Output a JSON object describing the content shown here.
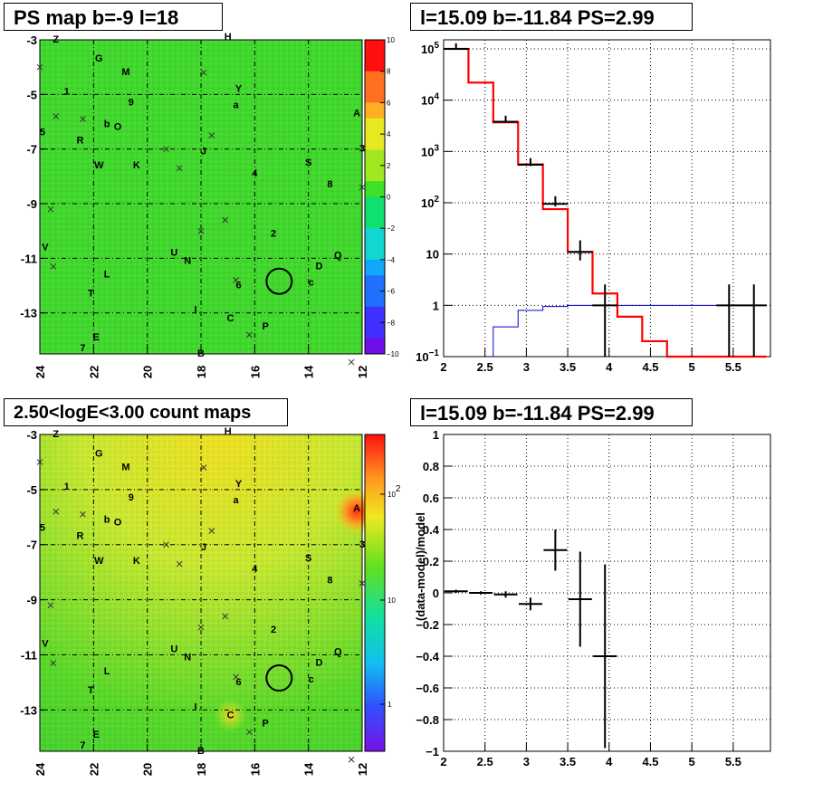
{
  "panels": {
    "ps_map_title": "PS map b=-9 l=18",
    "spectrum_title": "l=15.09 b=-11.84 PS=2.99",
    "count_map_title": "2.50<logE<3.00 count maps",
    "residual_title": "l=15.09 b=-11.84 PS=2.99"
  },
  "colors": {
    "map_green": "#3cdc28",
    "map_yellow": "#d8e828",
    "data": "#000000",
    "model_total": "#ff0000",
    "model_bg": "#0000cc"
  },
  "chart_data": [
    {
      "type": "heatmap",
      "name": "ps_map",
      "xlim": [
        24,
        12
      ],
      "ylim": [
        -14.5,
        -3
      ],
      "x_ticks": [
        24,
        22,
        20,
        18,
        16,
        14,
        12
      ],
      "y_ticks": [
        -3,
        -5,
        -7,
        -9,
        -11,
        -13
      ],
      "x_tick_labels": [
        "24",
        "22",
        "20",
        "18",
        "16",
        "14",
        "12"
      ],
      "y_tick_labels": [
        "-3",
        "-5",
        "-7",
        "-9",
        "-11",
        "-13"
      ],
      "colorbar": {
        "range": [
          -10,
          10
        ],
        "ticks": [
          10,
          8,
          6,
          4,
          2,
          0,
          -2,
          -4,
          -6,
          -8,
          -10
        ],
        "tick_labels": [
          "10",
          "8",
          "6",
          "4",
          "2",
          "0",
          "−2",
          "−4",
          "−6",
          "−8",
          "−10"
        ]
      },
      "circle": {
        "l": 15.09,
        "b": -11.84
      }
    },
    {
      "type": "line",
      "name": "spectrum",
      "log_y": true,
      "xlim": [
        2,
        5.95
      ],
      "ylim": [
        0.1,
        150000
      ],
      "x_ticks": [
        2,
        2.5,
        3,
        3.5,
        4,
        4.5,
        5,
        5.5
      ],
      "x_tick_labels": [
        "2",
        "2.5",
        "3",
        "3.5",
        "4",
        "4.5",
        "5",
        "5.5"
      ],
      "y_ticks": [
        0.1,
        1,
        10,
        100,
        1000,
        10000,
        100000
      ],
      "y_tick_labels": [
        {
          "base": "10",
          "exp": "−1"
        },
        {
          "base": "1",
          "exp": ""
        },
        {
          "base": "10",
          "exp": ""
        },
        {
          "base": "10",
          "exp": "2"
        },
        {
          "base": "10",
          "exp": "3"
        },
        {
          "base": "10",
          "exp": "4"
        },
        {
          "base": "10",
          "exp": "5"
        }
      ],
      "bin_edges": [
        2.0,
        2.3,
        2.6,
        2.9,
        3.2,
        3.5,
        3.8,
        4.1,
        4.4,
        4.7,
        5.0,
        5.3,
        5.6,
        5.9
      ],
      "model_total": [
        100000,
        22000,
        3700,
        560,
        75,
        11,
        1.7,
        0.6,
        0.2,
        0.1,
        0.1,
        0.1,
        0.1
      ],
      "model_background": [
        0,
        0,
        0.38,
        0.8,
        0.95,
        1.0,
        1.0,
        1.0,
        1.0,
        1.0,
        1.0,
        1.0,
        1.0
      ],
      "data_points": [
        {
          "x": 2.15,
          "y": 100000,
          "lo": 99000,
          "hi": 101000
        },
        {
          "x": 2.75,
          "y": 3800,
          "lo": 3700,
          "hi": 3900
        },
        {
          "x": 3.05,
          "y": 550,
          "lo": 520,
          "hi": 580
        },
        {
          "x": 3.35,
          "y": 95,
          "lo": 85,
          "hi": 105
        },
        {
          "x": 3.65,
          "y": 11,
          "lo": 7.5,
          "hi": 14.5
        },
        {
          "x": 3.95,
          "y": 1,
          "lo": 0.1,
          "hi": 2
        },
        {
          "x": 5.45,
          "y": 1,
          "lo": 0.1,
          "hi": 2
        },
        {
          "x": 5.75,
          "y": 1,
          "lo": 0.1,
          "hi": 2
        }
      ]
    },
    {
      "type": "heatmap",
      "name": "count_map",
      "xlim": [
        24,
        12
      ],
      "ylim": [
        -14.5,
        -3
      ],
      "x_ticks": [
        24,
        22,
        20,
        18,
        16,
        14,
        12
      ],
      "y_ticks": [
        -3,
        -5,
        -7,
        -9,
        -11,
        -13
      ],
      "x_tick_labels": [
        "24",
        "22",
        "20",
        "18",
        "16",
        "14",
        "12"
      ],
      "y_tick_labels": [
        "-3",
        "-5",
        "-7",
        "-9",
        "-11",
        "-13"
      ],
      "colorbar": {
        "log": true,
        "tick_labels": [
          {
            "base": "10",
            "exp": "2"
          },
          {
            "base": "10",
            "exp": ""
          },
          {
            "base": "1",
            "exp": ""
          }
        ]
      },
      "circle": {
        "l": 15.09,
        "b": -11.84
      }
    },
    {
      "type": "scatter",
      "name": "residual",
      "ylabel": "(data-model)/model",
      "xlim": [
        2,
        5.95
      ],
      "ylim": [
        -1,
        1
      ],
      "x_ticks": [
        2,
        2.5,
        3,
        3.5,
        4,
        4.5,
        5,
        5.5
      ],
      "x_tick_labels": [
        "2",
        "2.5",
        "3",
        "3.5",
        "4",
        "4.5",
        "5",
        "5.5"
      ],
      "y_ticks": [
        1,
        0.8,
        0.6,
        0.4,
        0.2,
        0,
        -0.2,
        -0.4,
        -0.6,
        -0.8,
        -1
      ],
      "y_tick_labels": [
        "1",
        "0.8",
        "0.6",
        "0.4",
        "0.2",
        "0",
        "−0.2",
        "−0.4",
        "−0.6",
        "−0.8",
        "−1"
      ],
      "points": [
        {
          "x": 2.15,
          "y": 0.01,
          "err": 0.01
        },
        {
          "x": 2.45,
          "y": 0.0,
          "err": 0.01
        },
        {
          "x": 2.75,
          "y": -0.01,
          "err": 0.02
        },
        {
          "x": 3.05,
          "y": -0.07,
          "err": 0.04
        },
        {
          "x": 3.35,
          "y": 0.27,
          "err": 0.13
        },
        {
          "x": 3.65,
          "y": -0.04,
          "err": 0.3
        },
        {
          "x": 3.95,
          "y": -0.4,
          "err": 0.58
        }
      ]
    }
  ],
  "source_markers": [
    {
      "l": 23.4,
      "b": -3.1,
      "t": "Z"
    },
    {
      "l": 21.8,
      "b": -3.8,
      "t": "G"
    },
    {
      "l": 17.0,
      "b": -3.0,
      "t": "H"
    },
    {
      "l": 20.8,
      "b": -4.3,
      "t": "M"
    },
    {
      "l": 16.6,
      "b": -4.9,
      "t": "Y"
    },
    {
      "l": 23.0,
      "b": -5.0,
      "t": "1"
    },
    {
      "l": 20.6,
      "b": -5.4,
      "t": "9"
    },
    {
      "l": 16.7,
      "b": -5.5,
      "t": "a"
    },
    {
      "l": 12.2,
      "b": -5.8,
      "t": "A"
    },
    {
      "l": 21.5,
      "b": -6.2,
      "t": "b"
    },
    {
      "l": 21.1,
      "b": -6.3,
      "t": "O"
    },
    {
      "l": 23.9,
      "b": -6.5,
      "t": "5"
    },
    {
      "l": 22.5,
      "b": -6.8,
      "t": "R"
    },
    {
      "l": 17.9,
      "b": -7.2,
      "t": "J"
    },
    {
      "l": 14.0,
      "b": -7.6,
      "t": "S"
    },
    {
      "l": 12.0,
      "b": -7.1,
      "t": "3"
    },
    {
      "l": 21.8,
      "b": -7.7,
      "t": "W"
    },
    {
      "l": 20.4,
      "b": -7.7,
      "t": "K"
    },
    {
      "l": 16.0,
      "b": -8.0,
      "t": "4"
    },
    {
      "l": 13.2,
      "b": -8.4,
      "t": "8"
    },
    {
      "l": 15.3,
      "b": -10.2,
      "t": "2"
    },
    {
      "l": 23.8,
      "b": -10.7,
      "t": "V"
    },
    {
      "l": 12.9,
      "b": -11.0,
      "t": "Q"
    },
    {
      "l": 19.0,
      "b": -10.9,
      "t": "U"
    },
    {
      "l": 18.5,
      "b": -11.2,
      "t": "N"
    },
    {
      "l": 13.6,
      "b": -11.4,
      "t": "D"
    },
    {
      "l": 21.5,
      "b": -11.7,
      "t": "L"
    },
    {
      "l": 16.6,
      "b": -12.1,
      "t": "6"
    },
    {
      "l": 13.9,
      "b": -12.0,
      "t": "c"
    },
    {
      "l": 22.1,
      "b": -12.4,
      "t": "T"
    },
    {
      "l": 18.2,
      "b": -13.0,
      "t": "I"
    },
    {
      "l": 16.9,
      "b": -13.3,
      "t": "C"
    },
    {
      "l": 15.6,
      "b": -13.6,
      "t": "P"
    },
    {
      "l": 21.9,
      "b": -14.0,
      "t": "E"
    },
    {
      "l": 22.4,
      "b": -14.4,
      "t": "7"
    },
    {
      "l": 18.0,
      "b": -14.6,
      "t": "B"
    }
  ],
  "x_markers": [
    {
      "l": 24.0,
      "b": -4.0
    },
    {
      "l": 17.9,
      "b": -4.2
    },
    {
      "l": 23.4,
      "b": -5.8
    },
    {
      "l": 22.4,
      "b": -5.9
    },
    {
      "l": 17.6,
      "b": -6.5
    },
    {
      "l": 19.3,
      "b": -7.0
    },
    {
      "l": 18.8,
      "b": -7.7
    },
    {
      "l": 12.0,
      "b": -8.4
    },
    {
      "l": 23.6,
      "b": -9.2
    },
    {
      "l": 17.1,
      "b": -9.6
    },
    {
      "l": 18.0,
      "b": -10.0
    },
    {
      "l": 23.5,
      "b": -11.3
    },
    {
      "l": 16.7,
      "b": -11.8
    },
    {
      "l": 16.2,
      "b": -13.8
    },
    {
      "l": 12.4,
      "b": -14.8
    }
  ]
}
